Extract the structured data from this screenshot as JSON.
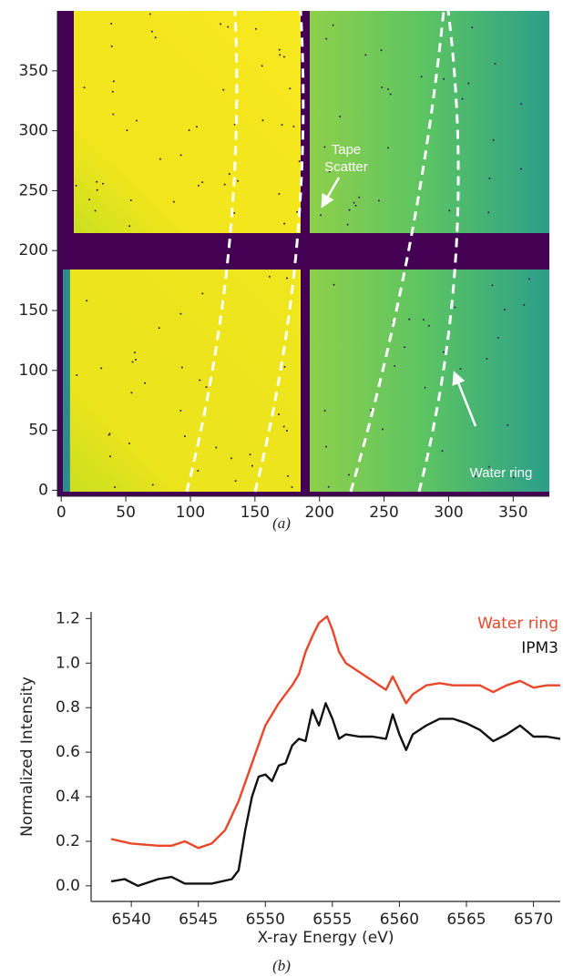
{
  "chart_data": [
    {
      "type": "image",
      "xlim": [
        -3,
        378
      ],
      "ylim": [
        -5,
        400
      ],
      "xticks": [
        0,
        50,
        100,
        150,
        200,
        250,
        300,
        350
      ],
      "yticks": [
        0,
        50,
        100,
        150,
        200,
        250,
        300,
        350
      ],
      "annotations": [
        "Tape Scatter",
        "Water ring"
      ],
      "caption": "(a)"
    },
    {
      "type": "line",
      "xlabel": "X-ray Energy (eV)",
      "ylabel": "Normalized Intensity",
      "xlim": [
        6537,
        6572
      ],
      "ylim": [
        -0.07,
        1.23
      ],
      "xticks": [
        6540,
        6545,
        6550,
        6555,
        6560,
        6565,
        6570
      ],
      "yticks": [
        {
          "value": 0,
          "label": "0.0"
        },
        0.2,
        0.4,
        0.6,
        0.8,
        {
          "value": 1,
          "label": "1.0"
        },
        1.2
      ],
      "legend": "upper right",
      "caption": "(b)",
      "series": [
        {
          "name": "Water ring",
          "color": "#e8472a",
          "x": [
            6538.5,
            6540,
            6542,
            6543,
            6544,
            6545,
            6546,
            6547,
            6548,
            6549,
            6550,
            6551,
            6552,
            6552.5,
            6553,
            6553.5,
            6554,
            6554.6,
            6555,
            6555.5,
            6556,
            6557,
            6558,
            6559,
            6559.5,
            6560,
            6560.5,
            6561,
            6562,
            6563,
            6564,
            6566,
            6567,
            6568,
            6569,
            6570,
            6571,
            6572
          ],
          "values": [
            0.21,
            0.19,
            0.18,
            0.18,
            0.2,
            0.17,
            0.19,
            0.25,
            0.38,
            0.55,
            0.72,
            0.82,
            0.9,
            0.95,
            1.05,
            1.12,
            1.18,
            1.21,
            1.15,
            1.05,
            1.0,
            0.96,
            0.92,
            0.88,
            0.94,
            0.88,
            0.82,
            0.86,
            0.9,
            0.91,
            0.9,
            0.9,
            0.87,
            0.9,
            0.92,
            0.89,
            0.9,
            0.9
          ]
        },
        {
          "name": "IPM3",
          "color": "#111111",
          "x": [
            6538.5,
            6539.5,
            6540.5,
            6542,
            6543,
            6544,
            6546,
            6547.5,
            6548,
            6548.5,
            6549,
            6549.5,
            6550,
            6550.5,
            6551,
            6551.5,
            6552,
            6552.5,
            6553,
            6553.5,
            6554,
            6554.5,
            6555,
            6555.5,
            6556,
            6557,
            6558,
            6559,
            6559.5,
            6560,
            6560.5,
            6561,
            6562,
            6563,
            6564,
            6565,
            6566,
            6567,
            6568,
            6569,
            6570,
            6571,
            6572
          ],
          "values": [
            0.02,
            0.03,
            0.0,
            0.03,
            0.04,
            0.01,
            0.01,
            0.03,
            0.07,
            0.25,
            0.4,
            0.49,
            0.5,
            0.47,
            0.54,
            0.55,
            0.63,
            0.66,
            0.65,
            0.79,
            0.72,
            0.82,
            0.75,
            0.66,
            0.68,
            0.67,
            0.67,
            0.66,
            0.77,
            0.68,
            0.61,
            0.68,
            0.72,
            0.75,
            0.75,
            0.73,
            0.7,
            0.65,
            0.68,
            0.72,
            0.67,
            0.67,
            0.66
          ]
        }
      ]
    }
  ]
}
